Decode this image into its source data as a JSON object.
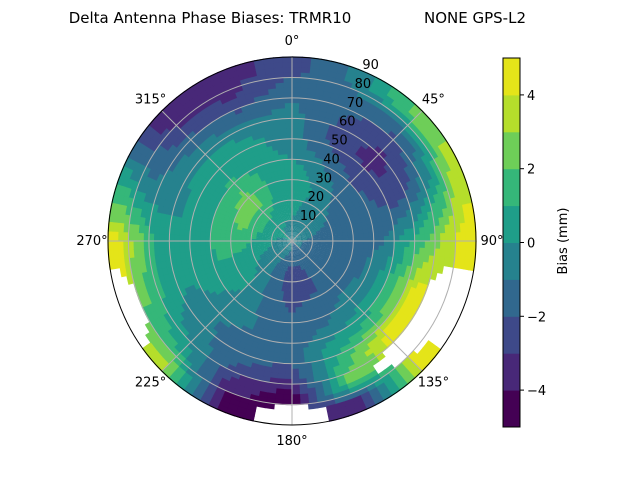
{
  "chart_data": {
    "type": "heatmap",
    "subtype": "polar-filled-contour",
    "title_left": "Delta Antenna Phase Biases: TRMR10",
    "title_right": "NONE GPS-L2",
    "angle_tick_labels": [
      "0°",
      "45°",
      "90°",
      "135°",
      "180°",
      "225°",
      "270°",
      "315°"
    ],
    "angle_ticks_deg": [
      0,
      45,
      90,
      135,
      180,
      225,
      270,
      315
    ],
    "angle_direction": "clockwise",
    "angle_zero": "top",
    "radial_ticks": [
      10,
      20,
      30,
      40,
      50,
      60,
      70,
      80,
      90
    ],
    "radial_tick_labels": [
      "10",
      "20",
      "30",
      "40",
      "50",
      "60",
      "70",
      "80",
      "90"
    ],
    "radial_range": [
      0,
      90
    ],
    "grid": true,
    "colorbar": {
      "label": "Bias (mm)",
      "levels": [
        -5,
        -4,
        -3,
        -2,
        -1,
        0,
        1,
        2,
        3,
        4,
        5
      ],
      "ticks": [
        -4,
        -2,
        0,
        2,
        4
      ],
      "tick_labels": [
        "−4",
        "−2",
        "0",
        "2",
        "4"
      ],
      "colormap": "viridis",
      "colors": [
        "#440154",
        "#482878",
        "#3e4989",
        "#31688e",
        "#26828e",
        "#1f9e89",
        "#35b779",
        "#6ece58",
        "#b5de2b",
        "#e4e419"
      ],
      "position": "right"
    },
    "azimuth_deg": [
      0,
      22.5,
      45,
      67.5,
      90,
      112.5,
      135,
      157.5,
      180,
      202.5,
      225,
      247.5,
      270,
      292.5,
      315,
      337.5
    ],
    "zenith_deg": [
      5,
      15,
      25,
      35,
      45,
      55,
      65,
      75,
      85
    ],
    "values_mm": [
      [
        -0.5,
        0.3,
        0.8,
        0.5,
        -0.5,
        -0.5,
        -0.8,
        -1.5,
        -2.5
      ],
      [
        -0.5,
        -0.3,
        0,
        -0.5,
        -1.5,
        -2.5,
        -2,
        -1.5,
        -0.5
      ],
      [
        -0.7,
        -0.8,
        -1,
        -1.5,
        -2.5,
        -3.5,
        -3,
        -1.5,
        2.5
      ],
      [
        -0.8,
        -1,
        -1.2,
        -1.5,
        -2,
        -2.5,
        -1.5,
        0.5,
        3.5
      ],
      [
        -1,
        -1.2,
        -1.5,
        -1.5,
        -1,
        0.5,
        2,
        3.5,
        4.5
      ],
      [
        -1,
        -1.2,
        -1.5,
        -1.2,
        0,
        2,
        4.5,
        null,
        null
      ],
      [
        -1,
        -1.5,
        -1.5,
        -1,
        0,
        1.5,
        4.5,
        null,
        4.5
      ],
      [
        -1.2,
        -2,
        -2.2,
        -1.5,
        -1,
        0.5,
        1.5,
        2.5,
        -4
      ],
      [
        -1,
        -2.5,
        -2.5,
        -2,
        -1.5,
        -1.5,
        -2.5,
        -4.5,
        null
      ],
      [
        -0.8,
        -1.5,
        -1.5,
        -1.2,
        -1,
        -1.5,
        -2,
        -3.5,
        -4.5
      ],
      [
        -0.5,
        -0.5,
        0,
        0,
        -0.5,
        -1,
        -0.5,
        0.5,
        3
      ],
      [
        -0.3,
        0,
        0.5,
        0.8,
        0.5,
        0,
        0.5,
        2,
        null
      ],
      [
        -0.3,
        0.5,
        1.5,
        1.5,
        0.5,
        0,
        0.5,
        2.5,
        4.5
      ],
      [
        0,
        1,
        2.5,
        1.5,
        0.5,
        0,
        -0.5,
        -1,
        0
      ],
      [
        0,
        1,
        2.5,
        2,
        0.5,
        0.5,
        -1,
        -2.5,
        -4
      ],
      [
        -0.3,
        0.5,
        1,
        0.8,
        0.5,
        0,
        -1.5,
        -3,
        -3.5
      ]
    ]
  }
}
